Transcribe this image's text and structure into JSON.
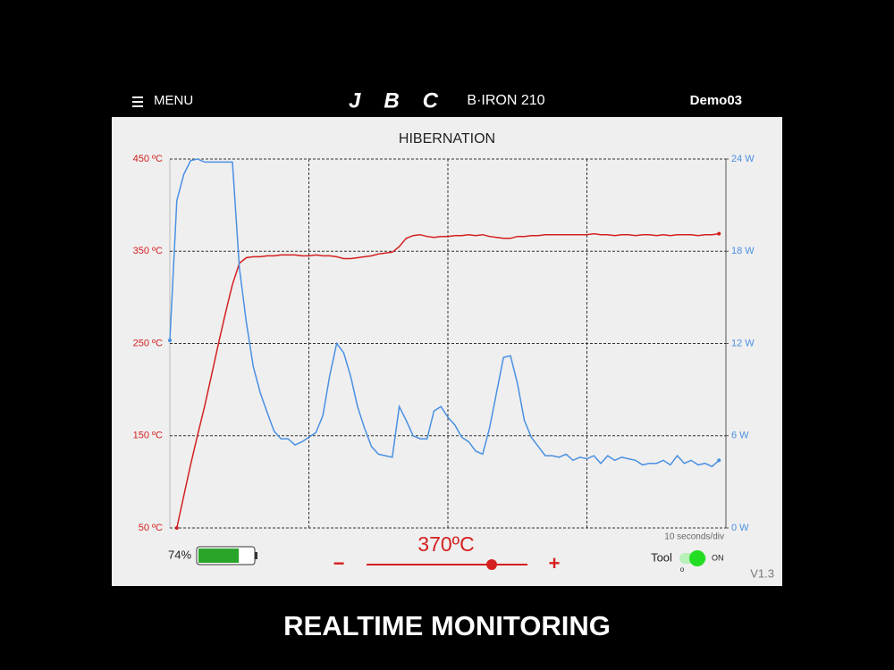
{
  "header": {
    "menu": "MENU",
    "brand": "JBC",
    "model": "B·IRON 210",
    "station": "Demo03"
  },
  "chart_data": {
    "type": "line",
    "title": "HIBERNATION",
    "annotation": "10 seconds/div",
    "x": [
      0,
      0.5,
      1,
      1.5,
      2,
      2.5,
      3,
      3.5,
      4,
      4.5,
      5,
      5.5,
      6,
      6.5,
      7,
      7.5,
      8,
      8.5,
      9,
      9.5,
      10,
      10.5,
      11,
      11.5,
      12,
      12.5,
      13,
      13.5,
      14,
      14.5,
      15,
      15.5,
      16,
      16.5,
      17,
      17.5,
      18,
      18.5,
      19,
      19.5,
      20,
      20.5,
      21,
      21.5,
      22,
      22.5,
      23,
      23.5,
      24,
      24.5,
      25,
      25.5,
      26,
      26.5,
      27,
      27.5,
      28,
      28.5,
      29,
      29.5,
      30,
      30.5,
      31,
      31.5,
      32,
      32.5,
      33,
      33.5,
      34,
      34.5,
      35,
      35.5,
      36,
      36.5,
      37,
      37.5,
      38,
      38.5,
      39,
      39.5
    ],
    "xlim": [
      0,
      40
    ],
    "xticks": [
      10,
      20,
      30
    ],
    "ylim": [
      50,
      450
    ],
    "yticks": [
      {
        "value": 50,
        "label": "50 ºC"
      },
      {
        "value": 150,
        "label": "150 ºC"
      },
      {
        "value": 250,
        "label": "250 ºC"
      },
      {
        "value": 350,
        "label": "350 ºC"
      },
      {
        "value": 450,
        "label": "450 ºC"
      }
    ],
    "y2lim": [
      0,
      24
    ],
    "y2ticks": [
      {
        "value": 0,
        "label": "0 W"
      },
      {
        "value": 6,
        "label": "6 W"
      },
      {
        "value": 12,
        "label": "12 W"
      },
      {
        "value": 18,
        "label": "18 W"
      },
      {
        "value": 24,
        "label": "24 W"
      }
    ],
    "grid": true,
    "y_color": "#d42020",
    "y2_color": "#4a90e2",
    "series": [
      {
        "color": "#d42020",
        "values": [
          null,
          50,
          85,
          119,
          151,
          182,
          216,
          250,
          283,
          314,
          337,
          343,
          344,
          344,
          345,
          345,
          346,
          346,
          346,
          345,
          345,
          346,
          345,
          345,
          344,
          342,
          342,
          343,
          344,
          345,
          347,
          348,
          349,
          355,
          364,
          367,
          368,
          366,
          365,
          366,
          366,
          367,
          367,
          368,
          367,
          368,
          366,
          365,
          364,
          364,
          366,
          366,
          367,
          367,
          368,
          368,
          368,
          368,
          368,
          368,
          368,
          369,
          368,
          368,
          367,
          368,
          368,
          367,
          368,
          368,
          367,
          368,
          367,
          368,
          368,
          368,
          367,
          368,
          368,
          369
        ]
      },
      {
        "color": "#4a90e2",
        "axis": "y2",
        "values": [
          12.2,
          21.3,
          23,
          23.9,
          24,
          23.8,
          23.8,
          23.8,
          23.8,
          23.8,
          16.9,
          13.4,
          10.5,
          8.8,
          7.5,
          6.3,
          5.8,
          5.8,
          5.4,
          5.6,
          5.9,
          6.2,
          7.3,
          9.9,
          12.0,
          11.4,
          9.9,
          7.9,
          6.5,
          5.3,
          4.8,
          4.7,
          4.6,
          7.9,
          7.0,
          6.0,
          5.8,
          5.8,
          7.6,
          7.9,
          7.2,
          6.7,
          5.9,
          5.6,
          5.0,
          4.8,
          6.5,
          8.8,
          11.1,
          11.2,
          9.4,
          7.0,
          5.9,
          5.3,
          4.7,
          4.7,
          4.6,
          4.8,
          4.4,
          4.6,
          4.5,
          4.7,
          4.2,
          4.7,
          4.4,
          4.6,
          4.5,
          4.4,
          4.1,
          4.2,
          4.2,
          4.4,
          4.1,
          4.7,
          4.2,
          4.4,
          4.1,
          4.2,
          4.0,
          4.4
        ]
      }
    ]
  },
  "controls": {
    "battery": {
      "value": 74,
      "label": "74%"
    },
    "decrease": "−",
    "setpoint": "370ºC",
    "increase": "+",
    "tool": "Tool",
    "toggle_on": "ON",
    "toggle_off": "o",
    "version": "V1.3"
  },
  "caption": "REALTIME MONITORING"
}
